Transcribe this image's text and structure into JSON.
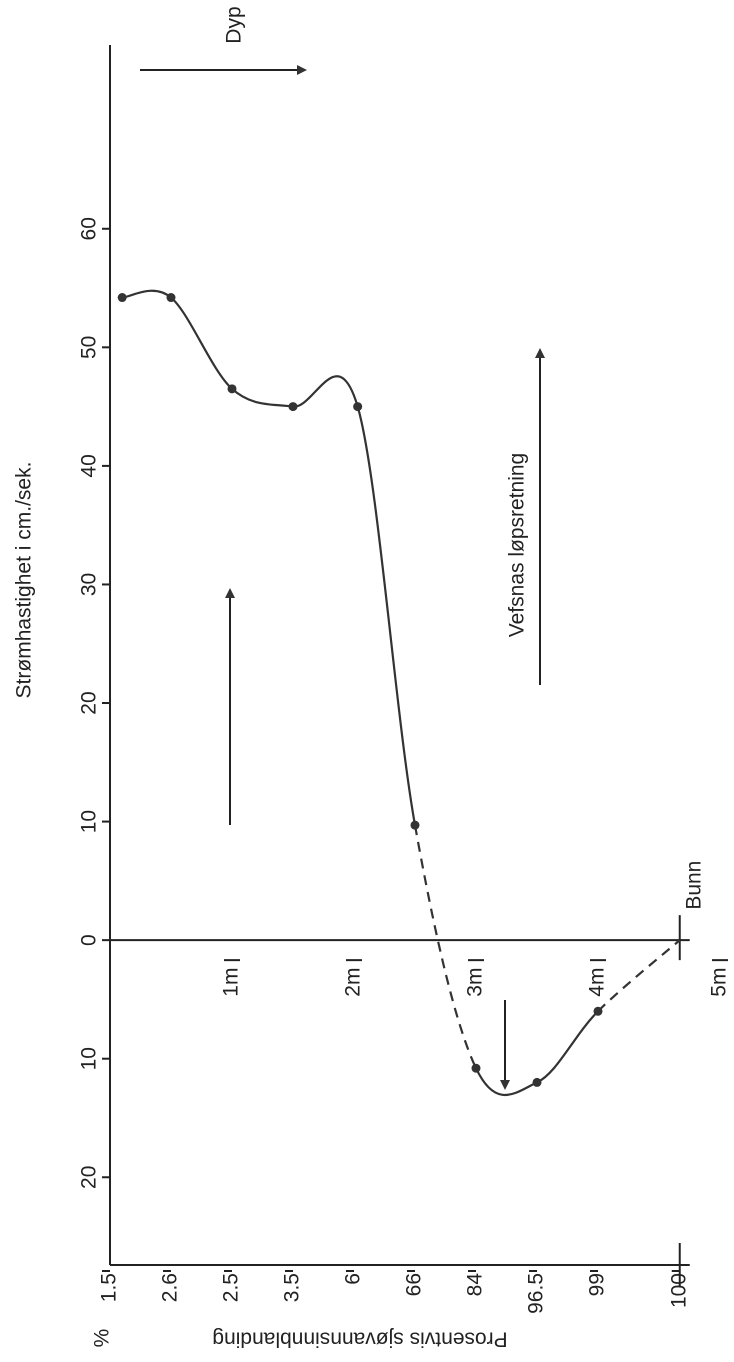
{
  "chart_data": {
    "type": "line",
    "y_label": "Strømhastighet i cm./sek.",
    "x2_label": "Prosentvis sjøvannsinnblanding",
    "x2_unit": "%",
    "annotations": {
      "top_arrow": "Dyp",
      "flow_arrow": "Vefsnas løpsretning"
    },
    "bottom_label": "Bunn",
    "bottom_depth": 4.67,
    "x": [
      0.1,
      0.5,
      1.0,
      1.5,
      2.03,
      2.5,
      3.0,
      3.5,
      4.0
    ],
    "series": [
      {
        "name": "Strømhastighet",
        "color": "#333333",
        "values": [
          54.2,
          54.2,
          46.5,
          45,
          45,
          9.7,
          -10.8,
          -12,
          -6
        ]
      }
    ],
    "segment_styles": [
      "solid",
      "solid",
      "solid",
      "solid",
      "solid",
      "dashed",
      "solid",
      "solid",
      "dashed"
    ],
    "xlim": [
      0,
      5
    ],
    "ylim": [
      -27.4,
      75.5
    ],
    "xticks": [
      {
        "value": 1,
        "label": "1m"
      },
      {
        "value": 2,
        "label": "2m"
      },
      {
        "value": 3,
        "label": "3m"
      },
      {
        "value": 4,
        "label": "4m"
      },
      {
        "value": 5,
        "label": "5m"
      }
    ],
    "yticks": [
      {
        "value": -20,
        "label": "20"
      },
      {
        "value": -10,
        "label": "10"
      },
      0,
      10,
      20,
      30,
      40,
      50,
      60
    ],
    "x2ticks": [
      {
        "value": 0,
        "label": "1.5"
      },
      {
        "value": 0.5,
        "label": "2.6"
      },
      {
        "value": 1,
        "label": "2.5"
      },
      {
        "value": 1.5,
        "label": "3.5"
      },
      {
        "value": 2,
        "label": "6"
      },
      {
        "value": 2.5,
        "label": "66"
      },
      {
        "value": 3,
        "label": "84"
      },
      {
        "value": 3.5,
        "label": "96.5"
      },
      {
        "value": 4,
        "label": "99"
      },
      {
        "value": 4.67,
        "label": "100"
      }
    ]
  }
}
